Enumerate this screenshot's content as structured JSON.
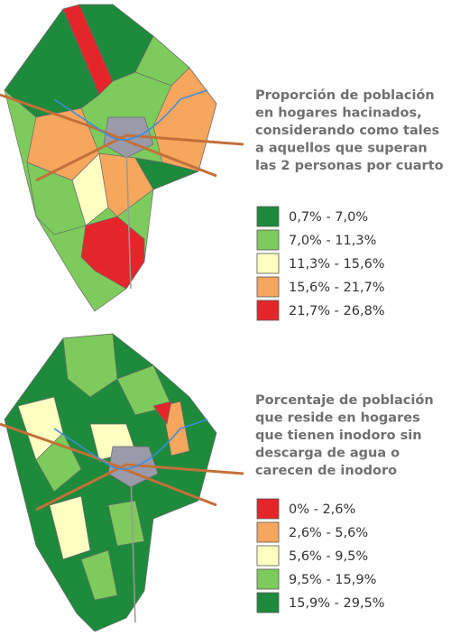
{
  "maps": [
    {
      "title_lines": [
        "Proporción de población",
        "en hogares hacinados,",
        "considerando como tales",
        "a aquellos que superan",
        "las 2 personas por cuarto"
      ],
      "legend": [
        {
          "label": "0,7% - 7,0%",
          "color": "#1e8a3c"
        },
        {
          "label": "7,0% - 11,3%",
          "color": "#7dcb5c"
        },
        {
          "label": "11,3% - 15,6%",
          "color": "#ffffc2"
        },
        {
          "label": "15,6% - 21,7%",
          "color": "#f7a65e"
        },
        {
          "label": "21,7% - 26,8%",
          "color": "#e4262a"
        }
      ]
    },
    {
      "title_lines": [
        "Porcentaje de población",
        "que reside en hogares",
        "que tienen inodoro sin",
        "descarga de agua o",
        "carecen de inodoro"
      ],
      "legend": [
        {
          "label": "0% - 2,6%",
          "color": "#e4262a"
        },
        {
          "label": "2,6% - 5,6%",
          "color": "#f7a65e"
        },
        {
          "label": "5,6% - 9,5%",
          "color": "#ffffc2"
        },
        {
          "label": "9,5% - 15,9%",
          "color": "#7dcb5c"
        },
        {
          "label": "15,9% - 29,5%",
          "color": "#1e8a3c"
        }
      ]
    }
  ]
}
